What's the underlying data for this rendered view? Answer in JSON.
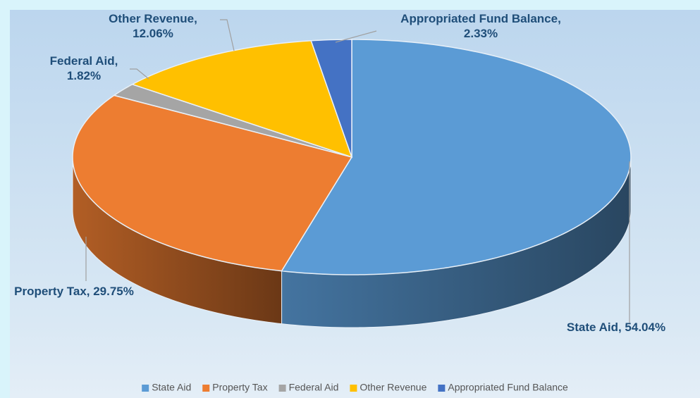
{
  "chart_data": {
    "type": "pie3d",
    "categories": [
      "State Aid",
      "Property Tax",
      "Federal Aid",
      "Other Revenue",
      "Appropriated Fund Balance"
    ],
    "values": [
      54.04,
      29.75,
      1.82,
      12.06,
      2.33
    ],
    "value_labels": [
      "State Aid, 54.04%",
      "Property Tax, 29.75%",
      "Federal Aid, 1.82%",
      "Other Revenue, 12.06%",
      "Appropriated Fund Balance, 2.33%"
    ],
    "colors": [
      "#5b9bd5",
      "#ed7d31",
      "#a5a5a5",
      "#ffc000",
      "#4472c4"
    ],
    "legend": "bottom"
  }
}
